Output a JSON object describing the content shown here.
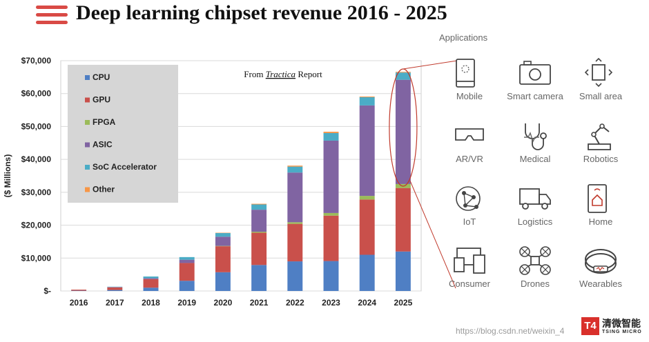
{
  "header": {
    "title": "Deep learning chipset revenue 2016 - 2025",
    "menu_icon": "hamburger-icon"
  },
  "applications": {
    "heading": "Applications",
    "items": [
      {
        "label": "Mobile",
        "icon": "mobile-icon"
      },
      {
        "label": "Smart camera",
        "icon": "camera-icon"
      },
      {
        "label": "Small area",
        "icon": "small-area-icon"
      },
      {
        "label": "AR/VR",
        "icon": "vr-headset-icon"
      },
      {
        "label": "Medical",
        "icon": "stethoscope-icon"
      },
      {
        "label": "Robotics",
        "icon": "robot-arm-icon"
      },
      {
        "label": "IoT",
        "icon": "iot-network-icon"
      },
      {
        "label": "Logistics",
        "icon": "truck-icon"
      },
      {
        "label": "Home",
        "icon": "smart-home-icon"
      },
      {
        "label": "Consumer",
        "icon": "devices-icon"
      },
      {
        "label": "Drones",
        "icon": "drone-icon"
      },
      {
        "label": "Wearables",
        "icon": "wristband-icon"
      }
    ]
  },
  "chart_data": {
    "type": "bar",
    "stacked": true,
    "title": "",
    "annotation": {
      "prefix": "From ",
      "source": "Tractica",
      "suffix": " Report"
    },
    "xlabel": "",
    "ylabel": "($ Millions)",
    "ylim": [
      0,
      70000
    ],
    "yticks": [
      0,
      10000,
      20000,
      30000,
      40000,
      50000,
      60000,
      70000
    ],
    "ytick_labels": [
      "$-",
      "$10,000",
      "$20,000",
      "$30,000",
      "$40,000",
      "$50,000",
      "$60,000",
      "$70,000"
    ],
    "categories": [
      "2016",
      "2017",
      "2018",
      "2019",
      "2020",
      "2021",
      "2022",
      "2023",
      "2024",
      "2025"
    ],
    "legend_position": "top-left",
    "grid": true,
    "series": [
      {
        "name": "CPU",
        "color": "#4f7fc4",
        "values": [
          100,
          300,
          1000,
          3100,
          5700,
          7900,
          9000,
          9100,
          11000,
          12000
        ]
      },
      {
        "name": "GPU",
        "color": "#c9504b",
        "values": [
          300,
          800,
          2600,
          5400,
          7900,
          9800,
          11400,
          13800,
          16800,
          19300
        ]
      },
      {
        "name": "FPGA",
        "color": "#9bbb59",
        "values": [
          0,
          0,
          0,
          0,
          100,
          300,
          500,
          800,
          1100,
          1200
        ]
      },
      {
        "name": "ASIC",
        "color": "#8064a2",
        "values": [
          0,
          100,
          300,
          1000,
          2800,
          6700,
          15100,
          22000,
          27500,
          31700
        ]
      },
      {
        "name": "SoC Accelerator",
        "color": "#4bacc6",
        "values": [
          0,
          100,
          500,
          800,
          1100,
          1600,
          1800,
          2300,
          2500,
          2200
        ]
      },
      {
        "name": "Other",
        "color": "#f79646",
        "values": [
          0,
          0,
          0,
          0,
          100,
          200,
          300,
          400,
          200,
          200
        ]
      }
    ]
  },
  "watermark": "https://blog.csdn.net/weixin_4",
  "brand": {
    "mark": "T4",
    "name_cn": "清微智能",
    "name_en": "TSING MICRO"
  }
}
